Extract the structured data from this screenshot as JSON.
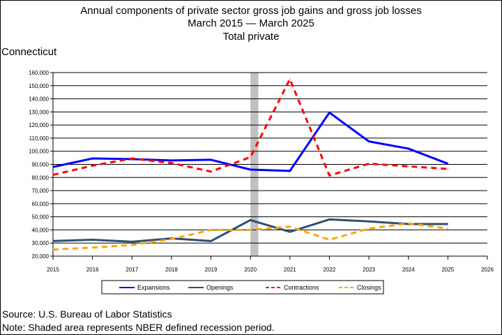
{
  "chart_data": {
    "type": "line",
    "title_lines": [
      "Annual components of private sector gross job gains and gross job losses",
      "March 2015 — March 2025",
      "Total private"
    ],
    "region_label": "Connecticut",
    "x": [
      2015,
      2016,
      2017,
      2018,
      2019,
      2020,
      2021,
      2022,
      2023,
      2024,
      2025
    ],
    "x_ticks": [
      "2015",
      "2016",
      "2017",
      "2018",
      "2019",
      "2020",
      "2021",
      "2022",
      "2023",
      "2024",
      "2025",
      "2026"
    ],
    "xlim": [
      2015,
      2026
    ],
    "ylim": [
      20000,
      160000
    ],
    "y_ticks": [
      "20,000",
      "30,000",
      "40,000",
      "50,000",
      "60,000",
      "70,000",
      "80,000",
      "90,000",
      "100,000",
      "110,000",
      "120,000",
      "130,000",
      "140,000",
      "150,000",
      "160,000"
    ],
    "grid": "horizontal",
    "recession_shading": [
      2020,
      2020.2
    ],
    "series": [
      {
        "name": "Expansions",
        "color": "#0000ff",
        "dash": "solid",
        "values": [
          88000,
          94500,
          94000,
          93000,
          93500,
          86000,
          85000,
          129500,
          107500,
          102000,
          90500
        ]
      },
      {
        "name": "Openings",
        "color": "#2f4f6f",
        "dash": "solid",
        "values": [
          31500,
          32500,
          31000,
          33500,
          31500,
          47500,
          38500,
          48000,
          46500,
          44500,
          44500
        ]
      },
      {
        "name": "Contractions",
        "color": "#ff0000",
        "dash": "dashed",
        "values": [
          82000,
          89000,
          94500,
          91000,
          84500,
          95500,
          155000,
          81500,
          90500,
          88500,
          86500
        ]
      },
      {
        "name": "Closings",
        "color": "#ffa500",
        "dash": "dashed",
        "values": [
          25000,
          26500,
          28500,
          33000,
          40000,
          40000,
          42500,
          32500,
          41000,
          45000,
          41000
        ]
      }
    ],
    "legend_placement": "bottom"
  },
  "footer": {
    "source": "Source: U.S. Bureau of Labor Statistics",
    "note": "Note: Shaded area represents NBER defined recession period."
  }
}
